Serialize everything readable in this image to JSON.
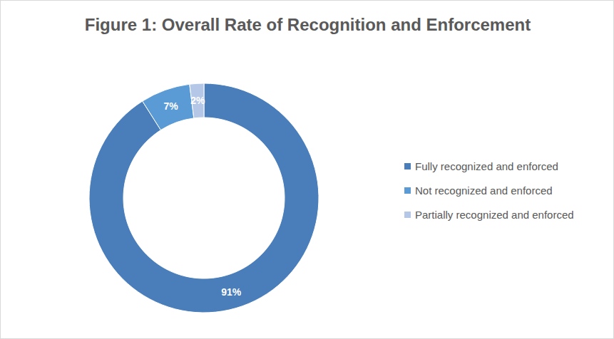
{
  "chart_data": {
    "type": "pie",
    "title": "Figure 1: Overall Rate of Recognition and Enforcement",
    "categories": [
      "Fully recognized and enforced",
      "Not recognized and enforced",
      "Partially recognized and enforced"
    ],
    "values": [
      91,
      7,
      2
    ],
    "value_labels": [
      "91%",
      "7%",
      "2%"
    ],
    "colors": [
      "#4a7ebb",
      "#5b9bd5",
      "#b4c7e7"
    ],
    "data_labels": true,
    "legend": "right"
  }
}
